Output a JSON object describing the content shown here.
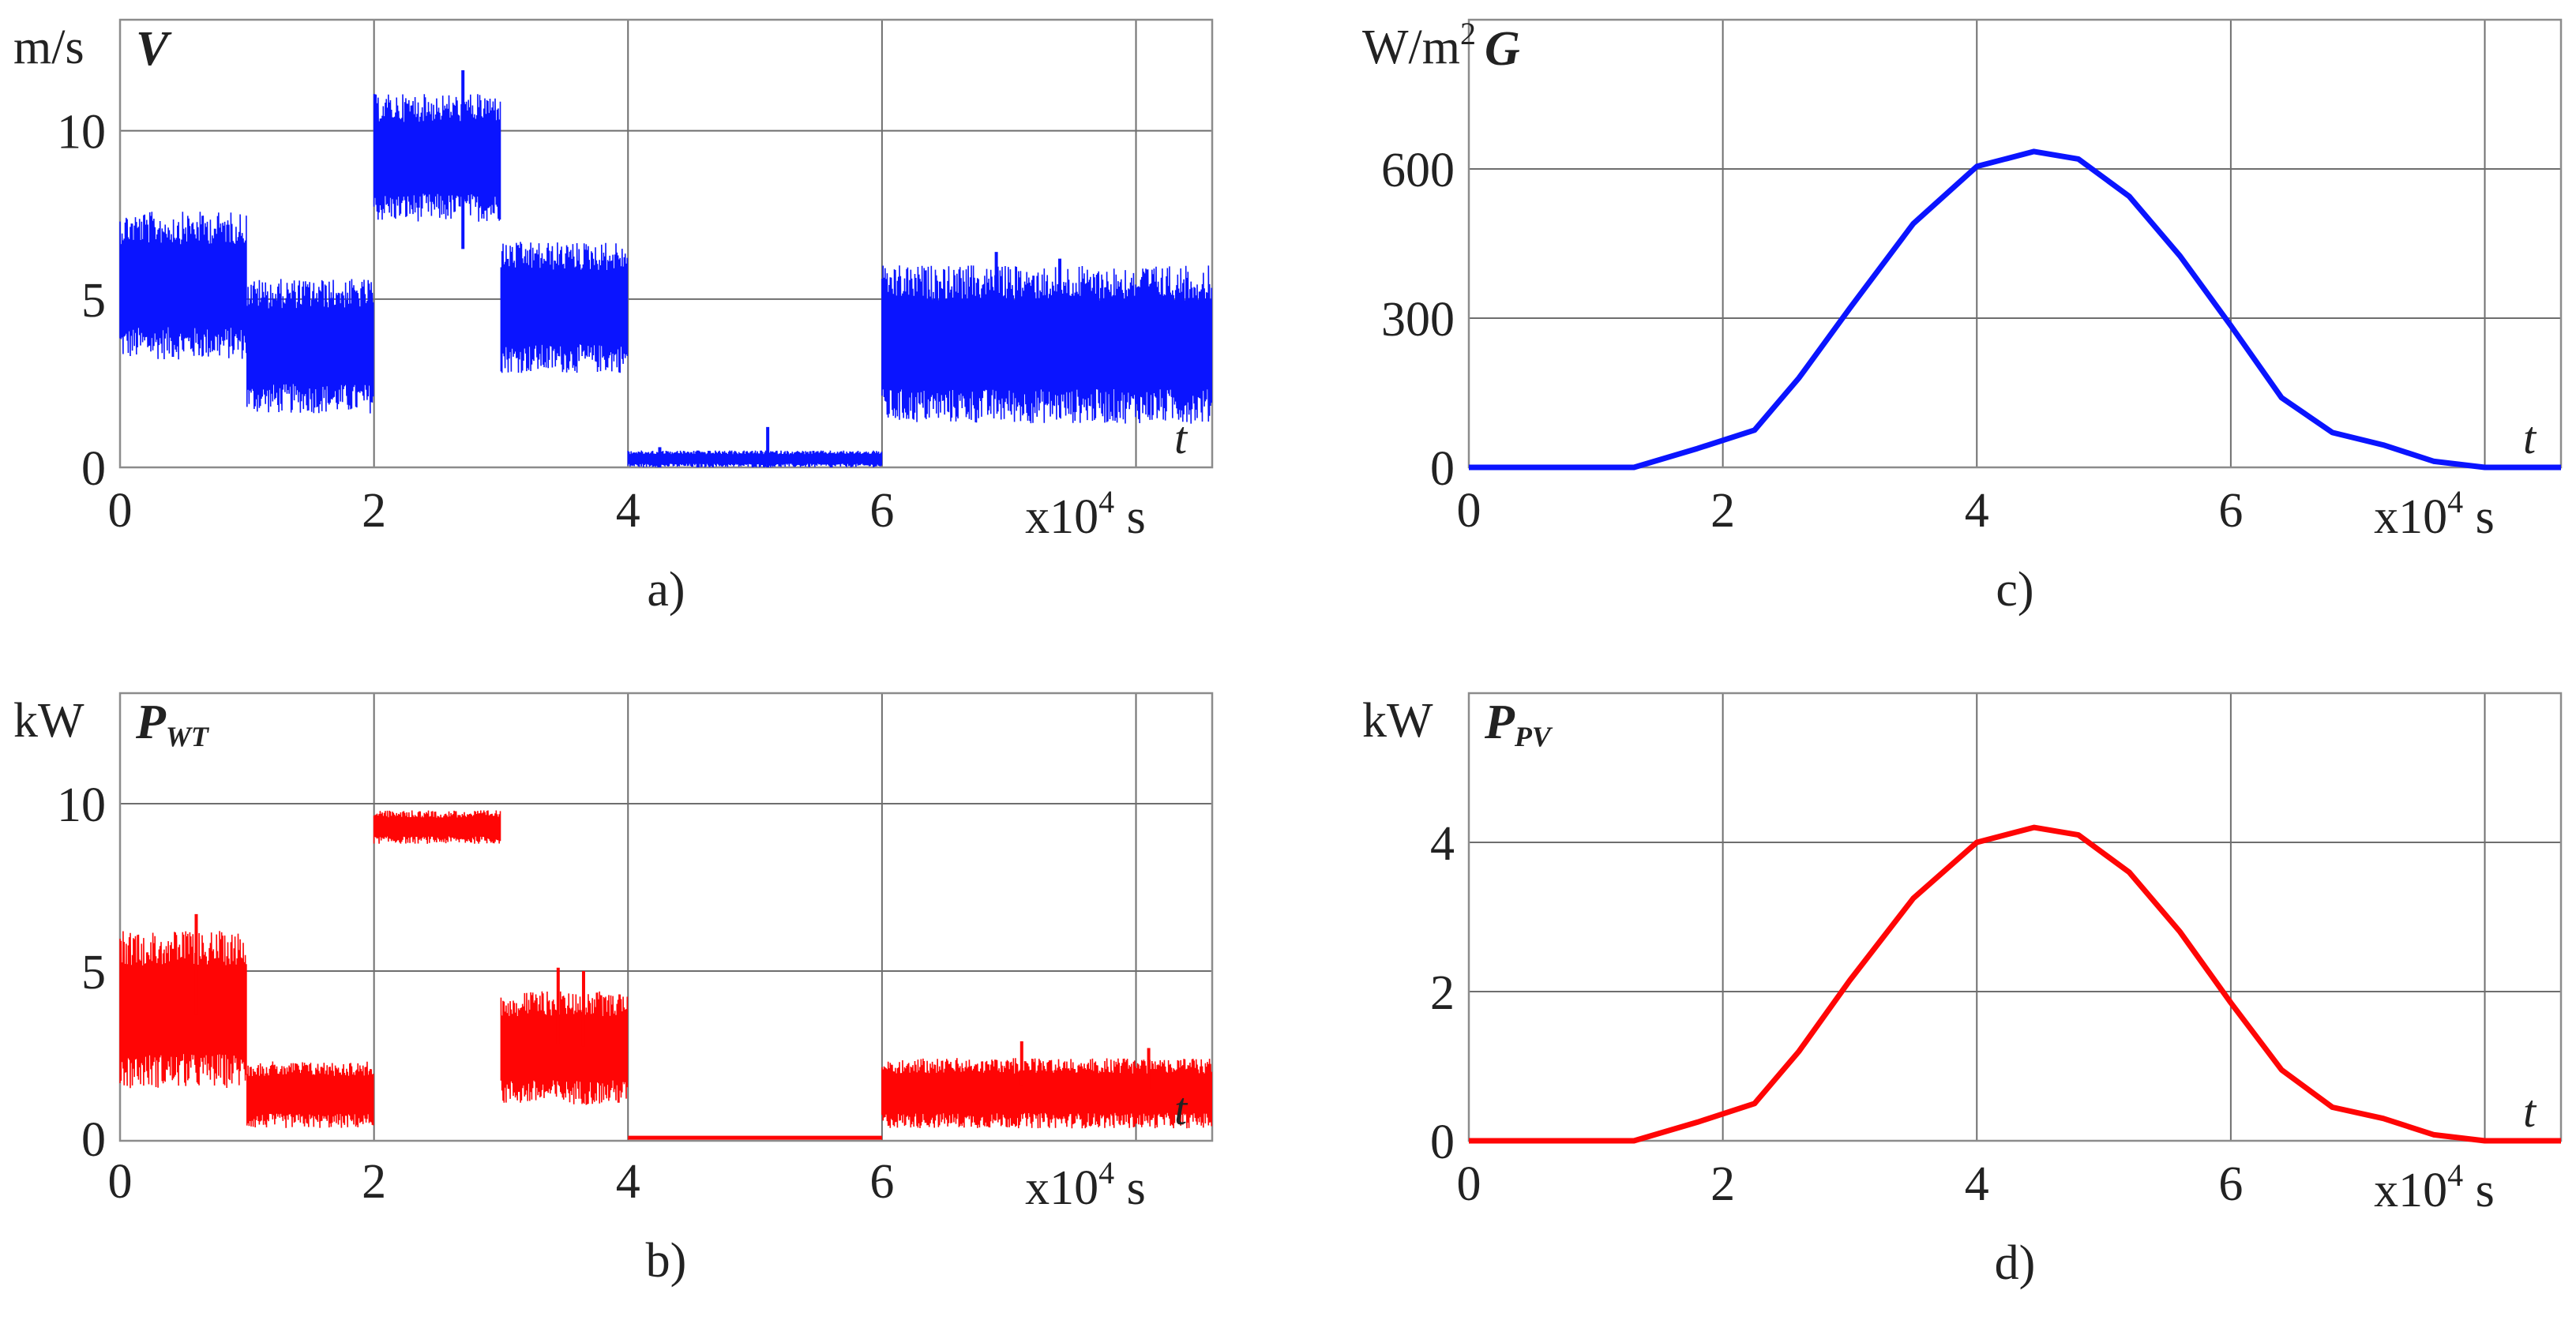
{
  "colors": {
    "blue": "#0a14ff",
    "red": "#ff0505",
    "grid": "#6e6e6e",
    "frame": "#8c8c8c"
  },
  "chart_data": [
    {
      "id": "a",
      "type": "line",
      "caption": "a)",
      "unit": "m/s",
      "symbol": "V",
      "symbol_sub": "",
      "x_label": "t",
      "x_unit_text": "x10",
      "x_unit_exp": "4",
      "x_unit_suffix": " s",
      "xlim": [
        0,
        8.6
      ],
      "ylim": [
        0,
        13.3
      ],
      "x_ticks": [
        0,
        2,
        4,
        6
      ],
      "x_tick_labels": [
        "0",
        "2",
        "4",
        "6"
      ],
      "x_grid": [
        0,
        2,
        4,
        6,
        8
      ],
      "y_ticks": [
        0,
        5,
        10
      ],
      "y_tick_labels": [
        "0",
        "5",
        "10"
      ],
      "color": "blue",
      "style": "noise",
      "series": [
        {
          "name": "V",
          "segments": [
            {
              "x0": 0.0,
              "x1": 1.0,
              "lo": 3.2,
              "hi": 7.6
            },
            {
              "x0": 1.0,
              "x1": 2.0,
              "lo": 1.6,
              "hi": 5.6
            },
            {
              "x0": 2.0,
              "x1": 3.0,
              "lo": 7.3,
              "hi": 11.1
            },
            {
              "x0": 3.0,
              "x1": 4.0,
              "lo": 2.8,
              "hi": 6.7
            },
            {
              "x0": 4.0,
              "x1": 6.0,
              "lo": 0.0,
              "hi": 0.5
            },
            {
              "x0": 6.0,
              "x1": 8.6,
              "lo": 1.3,
              "hi": 6.0
            }
          ]
        }
      ]
    },
    {
      "id": "b",
      "type": "line",
      "caption": "b)",
      "unit": "kW",
      "symbol": "P",
      "symbol_sub": "WT",
      "x_label": "t",
      "x_unit_text": "x10",
      "x_unit_exp": "4",
      "x_unit_suffix": " s",
      "xlim": [
        0,
        8.6
      ],
      "ylim": [
        0,
        13.3
      ],
      "x_ticks": [
        0,
        2,
        4,
        6
      ],
      "x_tick_labels": [
        "0",
        "2",
        "4",
        "6"
      ],
      "x_grid": [
        0,
        2,
        4,
        6,
        8
      ],
      "y_ticks": [
        0,
        5,
        10
      ],
      "y_tick_labels": [
        "0",
        "5",
        "10"
      ],
      "color": "red",
      "style": "noise",
      "series": [
        {
          "name": "P_WT",
          "segments": [
            {
              "x0": 0.0,
              "x1": 1.0,
              "lo": 1.5,
              "hi": 6.2
            },
            {
              "x0": 1.0,
              "x1": 2.0,
              "lo": 0.3,
              "hi": 2.3
            },
            {
              "x0": 2.0,
              "x1": 3.0,
              "lo": 8.8,
              "hi": 9.8
            },
            {
              "x0": 3.0,
              "x1": 4.0,
              "lo": 1.0,
              "hi": 4.4
            },
            {
              "x0": 4.0,
              "x1": 6.0,
              "lo": 0.0,
              "hi": 0.05
            },
            {
              "x0": 6.0,
              "x1": 8.6,
              "lo": 0.3,
              "hi": 2.4
            }
          ]
        }
      ]
    },
    {
      "id": "c",
      "type": "line",
      "caption": "c)",
      "unit": "W/m",
      "unit_sup": "2",
      "symbol": "G",
      "symbol_sub": "",
      "x_label": "t",
      "x_unit_text": "x10",
      "x_unit_exp": "4",
      "x_unit_suffix": " s",
      "xlim": [
        0,
        8.6
      ],
      "ylim": [
        0,
        900
      ],
      "x_ticks": [
        0,
        2,
        4,
        6
      ],
      "x_tick_labels": [
        "0",
        "2",
        "4",
        "6"
      ],
      "x_grid": [
        0,
        2,
        4,
        6,
        8
      ],
      "y_ticks": [
        0,
        300,
        600
      ],
      "y_tick_labels": [
        "0",
        "300",
        "600"
      ],
      "color": "blue",
      "style": "smooth",
      "series": [
        {
          "name": "G",
          "x": [
            0,
            1.3,
            1.8,
            2.25,
            2.6,
            3.0,
            3.5,
            4.0,
            4.45,
            4.8,
            5.2,
            5.6,
            6.0,
            6.4,
            6.8,
            7.2,
            7.6,
            8.0,
            8.6
          ],
          "y": [
            0,
            0,
            38,
            75,
            180,
            320,
            490,
            605,
            635,
            620,
            545,
            425,
            285,
            140,
            70,
            45,
            12,
            0,
            0
          ]
        }
      ]
    },
    {
      "id": "d",
      "type": "line",
      "caption": "d)",
      "unit": "kW",
      "symbol": "P",
      "symbol_sub": "PV",
      "x_label": "t",
      "x_unit_text": "x10",
      "x_unit_exp": "4",
      "x_unit_suffix": " s",
      "xlim": [
        0,
        8.6
      ],
      "ylim": [
        0,
        6
      ],
      "x_ticks": [
        0,
        2,
        4,
        6
      ],
      "x_tick_labels": [
        "0",
        "2",
        "4",
        "6"
      ],
      "x_grid": [
        0,
        2,
        4,
        6,
        8
      ],
      "y_ticks": [
        0,
        2,
        4
      ],
      "y_tick_labels": [
        "0",
        "2",
        "4"
      ],
      "color": "red",
      "style": "smooth",
      "series": [
        {
          "name": "P_PV",
          "x": [
            0,
            1.3,
            1.8,
            2.25,
            2.6,
            3.0,
            3.5,
            4.0,
            4.45,
            4.8,
            5.2,
            5.6,
            6.0,
            6.4,
            6.8,
            7.2,
            7.6,
            8.0,
            8.6
          ],
          "y": [
            0,
            0,
            0.25,
            0.5,
            1.2,
            2.15,
            3.25,
            4.0,
            4.2,
            4.1,
            3.6,
            2.8,
            1.85,
            0.95,
            0.45,
            0.3,
            0.08,
            0,
            0
          ]
        }
      ]
    }
  ]
}
